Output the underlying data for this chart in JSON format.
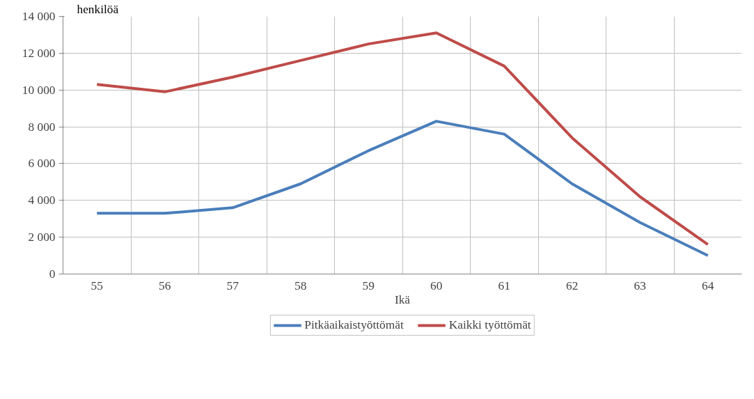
{
  "chart_data": {
    "type": "line",
    "xlabel": "Ikä",
    "ylabel": "henkilöä",
    "categories": [
      "55",
      "56",
      "57",
      "58",
      "59",
      "60",
      "61",
      "62",
      "63",
      "64"
    ],
    "series": [
      {
        "name": "Pitkäaikaistyöttömät",
        "color": "#4a7ebb",
        "values": [
          3300,
          3300,
          3600,
          4900,
          6700,
          8300,
          7600,
          4900,
          2800,
          1000
        ]
      },
      {
        "name": "Kaikki työttömät",
        "color": "#be4b48",
        "values": [
          10300,
          9900,
          10700,
          11600,
          12500,
          13100,
          11300,
          7400,
          4200,
          1600
        ]
      }
    ],
    "ylim": [
      0,
      14000
    ],
    "yticks": [
      0,
      {
        "value": 2000,
        "label": "2 000"
      },
      {
        "value": 4000,
        "label": "4 000"
      },
      {
        "value": 6000,
        "label": "6 000"
      },
      {
        "value": 8000,
        "label": "8 000"
      },
      {
        "value": 10000,
        "label": "10 000"
      },
      {
        "value": 12000,
        "label": "12 000"
      },
      {
        "value": 14000,
        "label": "14 000"
      }
    ],
    "grid": true,
    "legend": "bottom",
    "marker": "none",
    "line_style": "solid"
  }
}
